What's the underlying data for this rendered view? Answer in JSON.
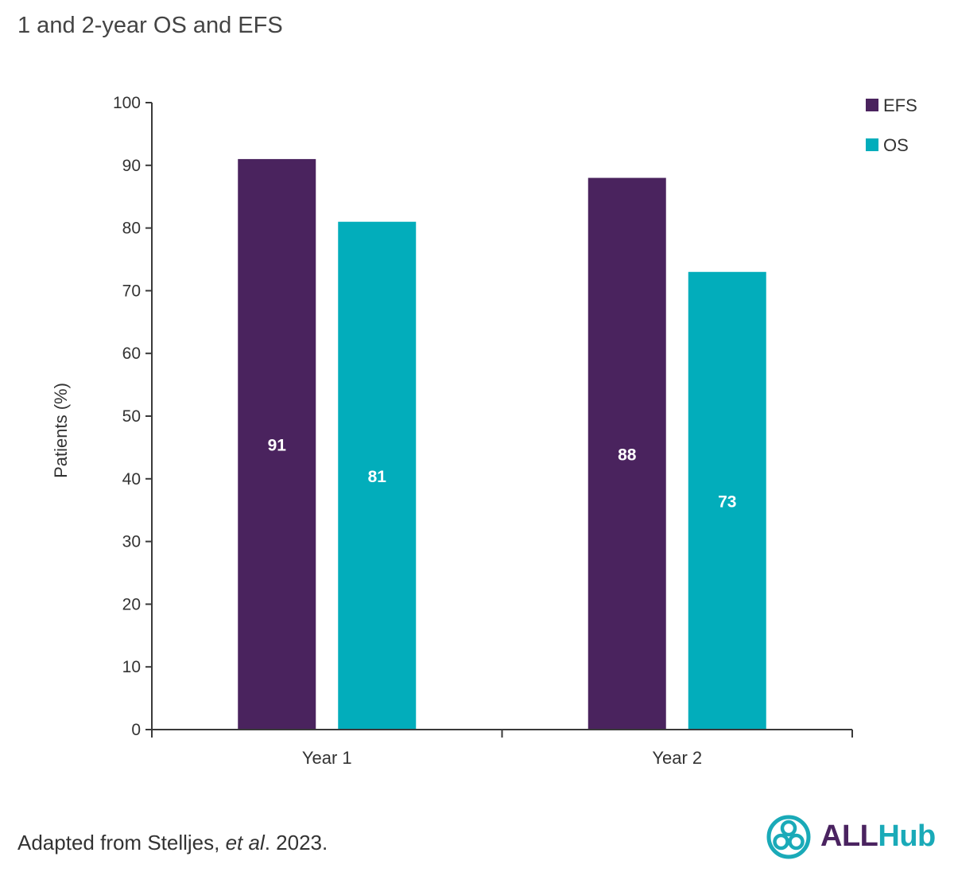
{
  "title": "1 and 2-year OS and EFS",
  "footnote": {
    "prefix": "Adapted from Stelljes, ",
    "italic": "et al",
    "suffix": ". 2023."
  },
  "logo": {
    "part1": "ALL",
    "part2": "Hub",
    "color_part1": "#4a2360",
    "color_part2": "#1aaab8"
  },
  "chart_data": {
    "type": "bar",
    "title": "1 and 2-year OS and EFS",
    "categories": [
      "Year 1",
      "Year 2"
    ],
    "series": [
      {
        "name": "EFS",
        "values": [
          91,
          88
        ],
        "color": "#4a235e"
      },
      {
        "name": "OS",
        "values": [
          81,
          73
        ],
        "color": "#02adbb"
      }
    ],
    "xlabel": "",
    "ylabel": "Patients (%)",
    "ylim": [
      0,
      100
    ],
    "yticks": [
      0,
      10,
      20,
      30,
      40,
      50,
      60,
      70,
      80,
      90,
      100
    ],
    "grid": false,
    "legend": "top-right",
    "data_labels": true
  }
}
